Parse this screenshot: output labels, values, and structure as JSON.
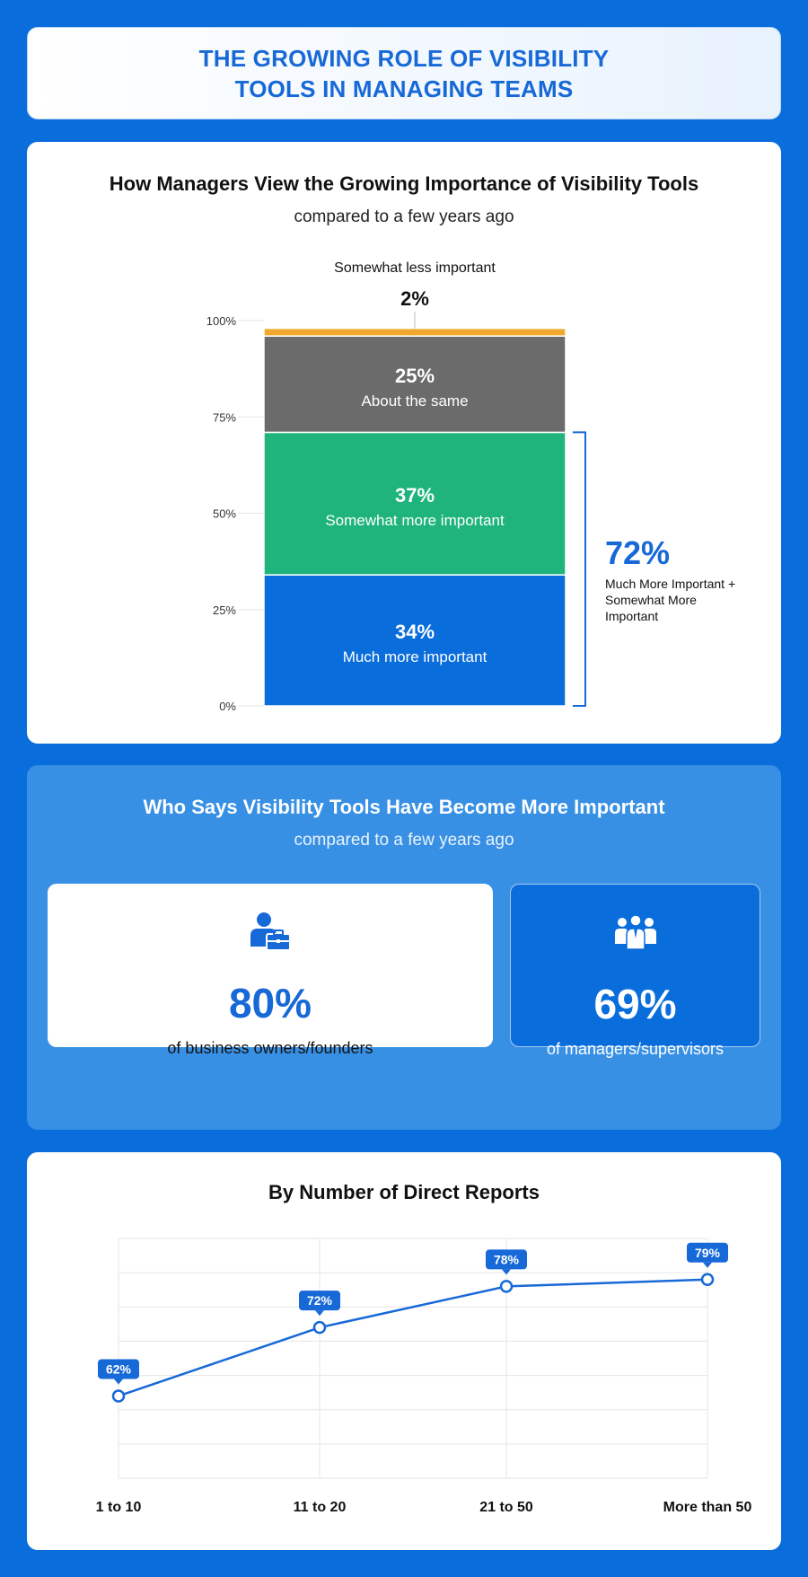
{
  "page_title": "THE GROWING ROLE OF VISIBILITY\nTOOLS IN MANAGING TEAMS",
  "chart_data": [
    {
      "type": "bar",
      "subtype": "stacked-100",
      "title": "How Managers View the Growing Importance of Visibility Tools",
      "subtitle": "compared to a few years ago",
      "ylim": [
        0,
        100
      ],
      "yticks": [
        "0%",
        "25%",
        "50%",
        "75%",
        "100%"
      ],
      "series": [
        {
          "name": "Much more important",
          "value": 34,
          "label": "34%",
          "color": "#0A6DDC"
        },
        {
          "name": "Somewhat more important",
          "value": 37,
          "label": "37%",
          "color": "#1EB47C"
        },
        {
          "name": "About the same",
          "value": 25,
          "label": "25%",
          "color": "#6B6B6B"
        },
        {
          "name": "Somewhat less important",
          "value": 2,
          "label": "2%",
          "color": "#F0A92E"
        }
      ],
      "bracket": {
        "value": "72%",
        "text": [
          "Much More Important +",
          "Somewhat More",
          "Important"
        ],
        "color": "#1769D8"
      }
    },
    {
      "type": "line",
      "title": "By Number of Direct Reports",
      "categories": [
        "1 to 10",
        "11 to 20",
        "21 to 50",
        "More than 50"
      ],
      "values": [
        62,
        72,
        78,
        79
      ],
      "labels": [
        "62%",
        "72%",
        "78%",
        "79%"
      ],
      "ylim": [
        50,
        85
      ],
      "grid": true,
      "color": "#1769D8"
    }
  ],
  "who": {
    "title": "Who Says Visibility Tools Have Become More Important",
    "subtitle": "compared to a few years ago",
    "cards": [
      {
        "icon": "business-owner-icon",
        "value": "80%",
        "label": "of business owners/founders"
      },
      {
        "icon": "managers-group-icon",
        "value": "69%",
        "label": "of managers/supervisors"
      }
    ]
  }
}
